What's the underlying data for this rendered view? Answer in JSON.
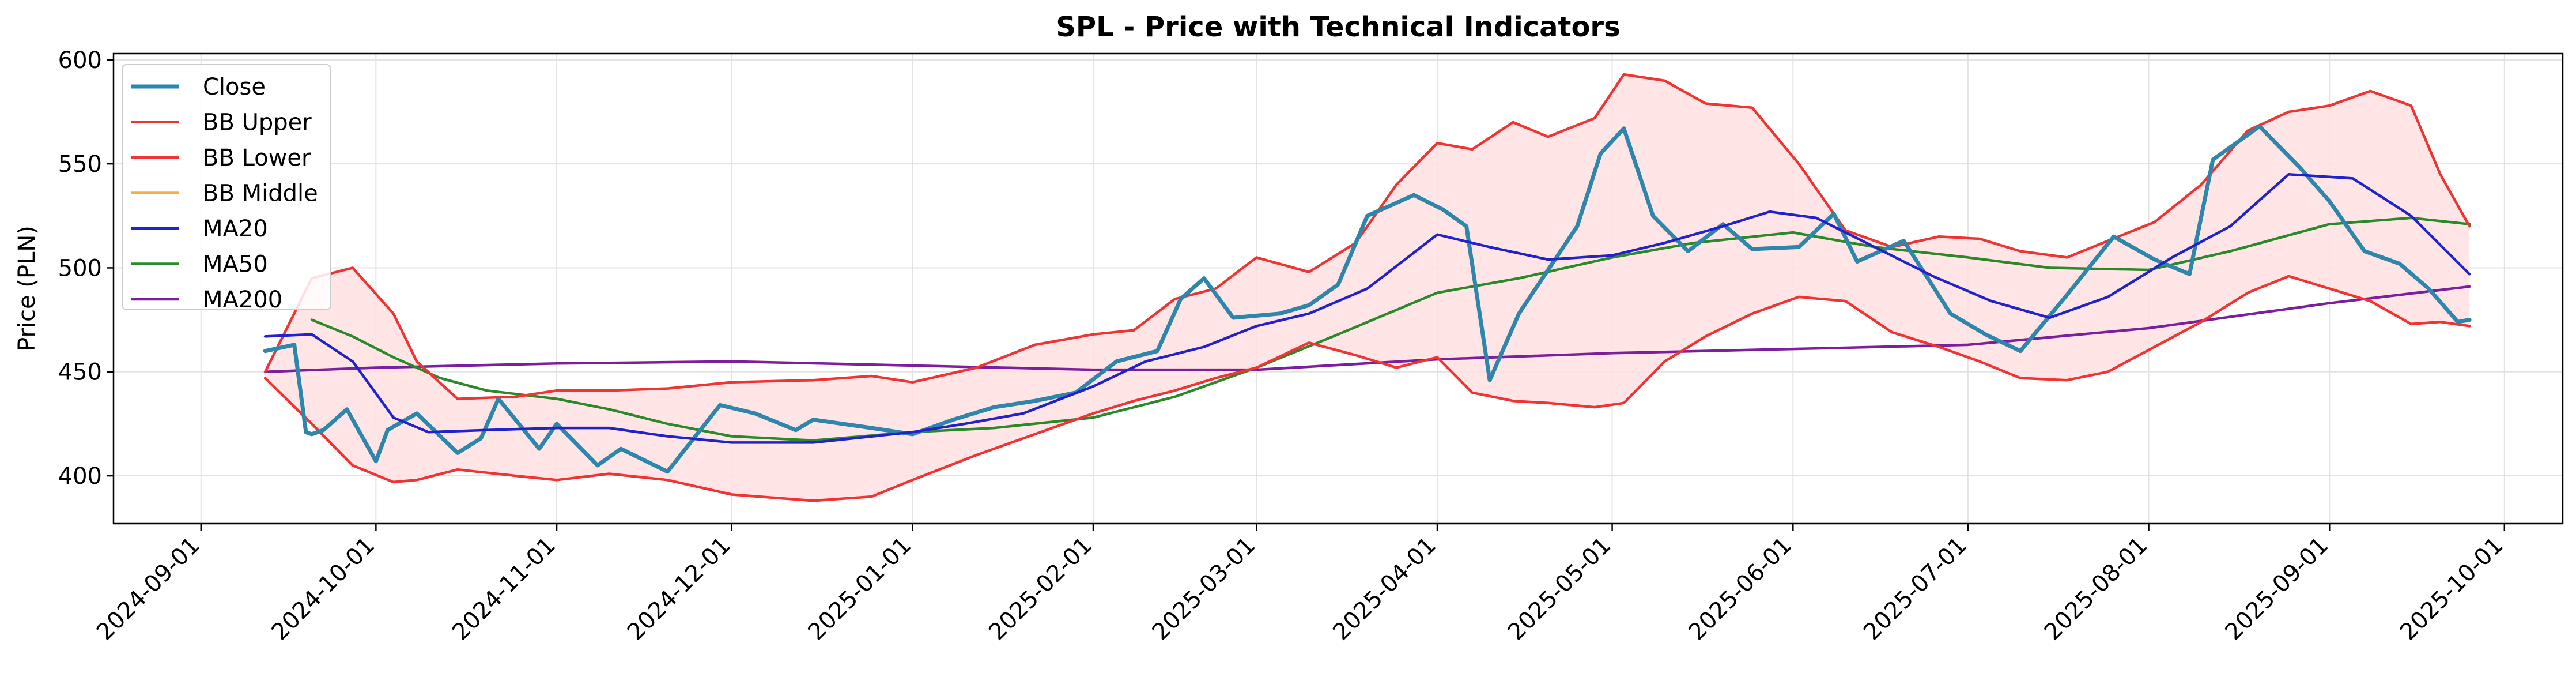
{
  "chart_data": {
    "type": "line",
    "title": "SPL - Price with Technical Indicators",
    "xlabel": "",
    "ylabel": "Price (PLN)",
    "ylim": [
      377,
      603
    ],
    "xlim": [
      "2024-08-17",
      "2025-10-11"
    ],
    "yticks": [
      400,
      450,
      500,
      550,
      600
    ],
    "xticks": [
      "2024-09-01",
      "2024-10-01",
      "2024-11-01",
      "2024-12-01",
      "2025-01-01",
      "2025-02-01",
      "2025-03-01",
      "2025-04-01",
      "2025-05-01",
      "2025-06-01",
      "2025-07-01",
      "2025-08-01",
      "2025-09-01",
      "2025-10-01"
    ],
    "grid": true,
    "legend_position": "upper-left",
    "band_fill_color": "#ffe0e0",
    "series": [
      {
        "name": "Close",
        "color": "#2e86ab",
        "x": [
          "2024-09-12",
          "2024-09-17",
          "2024-09-19",
          "2024-09-20",
          "2024-09-22",
          "2024-09-26",
          "2024-10-01",
          "2024-10-03",
          "2024-10-08",
          "2024-10-15",
          "2024-10-19",
          "2024-10-22",
          "2024-10-29",
          "2024-11-01",
          "2024-11-08",
          "2024-11-12",
          "2024-11-20",
          "2024-11-29",
          "2024-12-05",
          "2024-12-12",
          "2024-12-15",
          "2024-12-25",
          "2025-01-01",
          "2025-01-08",
          "2025-01-15",
          "2025-01-22",
          "2025-01-29",
          "2025-02-05",
          "2025-02-12",
          "2025-02-16",
          "2025-02-20",
          "2025-02-25",
          "2025-03-05",
          "2025-03-10",
          "2025-03-15",
          "2025-03-20",
          "2025-03-28",
          "2025-04-02",
          "2025-04-06",
          "2025-04-10",
          "2025-04-15",
          "2025-04-25",
          "2025-04-29",
          "2025-05-03",
          "2025-05-08",
          "2025-05-14",
          "2025-05-20",
          "2025-05-25",
          "2025-06-02",
          "2025-06-08",
          "2025-06-12",
          "2025-06-20",
          "2025-06-28",
          "2025-07-04",
          "2025-07-10",
          "2025-07-18",
          "2025-07-26",
          "2025-08-02",
          "2025-08-08",
          "2025-08-12",
          "2025-08-20",
          "2025-08-27",
          "2025-09-01",
          "2025-09-07",
          "2025-09-13",
          "2025-09-18",
          "2025-09-23",
          "2025-09-25"
        ],
        "y": [
          460,
          463,
          421,
          420,
          422,
          432,
          407,
          422,
          430,
          411,
          418,
          437,
          413,
          425,
          405,
          413,
          402,
          434,
          430,
          422,
          427,
          423,
          420,
          427,
          433,
          436,
          440,
          455,
          460,
          485,
          495,
          476,
          478,
          482,
          492,
          525,
          535,
          528,
          520,
          446,
          478,
          520,
          555,
          567,
          525,
          508,
          521,
          509,
          510,
          526,
          503,
          513,
          478,
          468,
          460,
          487,
          515,
          504,
          497,
          552,
          568,
          548,
          532,
          508,
          502,
          490,
          474,
          475
        ]
      },
      {
        "name": "BB Upper",
        "color": "#f03333",
        "x": [
          "2024-09-12",
          "2024-09-20",
          "2024-09-27",
          "2024-10-04",
          "2024-10-08",
          "2024-10-15",
          "2024-10-25",
          "2024-11-01",
          "2024-11-10",
          "2024-11-20",
          "2024-12-01",
          "2024-12-15",
          "2024-12-25",
          "2025-01-01",
          "2025-01-12",
          "2025-01-22",
          "2025-02-01",
          "2025-02-08",
          "2025-02-15",
          "2025-02-22",
          "2025-03-01",
          "2025-03-10",
          "2025-03-18",
          "2025-03-25",
          "2025-04-01",
          "2025-04-07",
          "2025-04-14",
          "2025-04-20",
          "2025-04-28",
          "2025-05-03",
          "2025-05-10",
          "2025-05-17",
          "2025-05-25",
          "2025-06-02",
          "2025-06-10",
          "2025-06-18",
          "2025-06-26",
          "2025-07-03",
          "2025-07-10",
          "2025-07-18",
          "2025-07-25",
          "2025-08-02",
          "2025-08-10",
          "2025-08-18",
          "2025-08-25",
          "2025-09-01",
          "2025-09-08",
          "2025-09-15",
          "2025-09-20",
          "2025-09-25"
        ],
        "y": [
          450,
          495,
          500,
          478,
          455,
          437,
          438,
          441,
          441,
          442,
          445,
          446,
          448,
          445,
          452,
          463,
          468,
          470,
          485,
          490,
          505,
          498,
          512,
          540,
          560,
          557,
          570,
          563,
          572,
          593,
          590,
          579,
          577,
          550,
          518,
          510,
          515,
          514,
          508,
          505,
          513,
          522,
          540,
          566,
          575,
          578,
          585,
          578,
          545,
          520
        ]
      },
      {
        "name": "BB Lower",
        "color": "#f03333",
        "x": [
          "2024-09-12",
          "2024-09-20",
          "2024-09-27",
          "2024-10-04",
          "2024-10-08",
          "2024-10-15",
          "2024-10-25",
          "2024-11-01",
          "2024-11-10",
          "2024-11-20",
          "2024-12-01",
          "2024-12-15",
          "2024-12-25",
          "2025-01-01",
          "2025-01-12",
          "2025-01-22",
          "2025-02-01",
          "2025-02-08",
          "2025-02-15",
          "2025-02-22",
          "2025-03-01",
          "2025-03-10",
          "2025-03-18",
          "2025-03-25",
          "2025-04-01",
          "2025-04-07",
          "2025-04-14",
          "2025-04-20",
          "2025-04-28",
          "2025-05-03",
          "2025-05-10",
          "2025-05-17",
          "2025-05-25",
          "2025-06-02",
          "2025-06-10",
          "2025-06-18",
          "2025-06-26",
          "2025-07-03",
          "2025-07-10",
          "2025-07-18",
          "2025-07-25",
          "2025-08-02",
          "2025-08-10",
          "2025-08-18",
          "2025-08-25",
          "2025-09-01",
          "2025-09-08",
          "2025-09-15",
          "2025-09-20",
          "2025-09-25"
        ],
        "y": [
          447,
          425,
          405,
          397,
          398,
          403,
          400,
          398,
          401,
          398,
          391,
          388,
          390,
          398,
          410,
          420,
          430,
          436,
          441,
          447,
          452,
          464,
          458,
          452,
          457,
          440,
          436,
          435,
          433,
          435,
          455,
          467,
          478,
          486,
          484,
          469,
          462,
          455,
          447,
          446,
          450,
          462,
          474,
          488,
          496,
          490,
          484,
          473,
          474,
          472
        ]
      },
      {
        "name": "BB Middle",
        "color": "#f5b041",
        "x": [],
        "y": []
      },
      {
        "name": "MA20",
        "color": "#2222cc",
        "x": [
          "2024-09-12",
          "2024-09-20",
          "2024-09-27",
          "2024-10-04",
          "2024-10-10",
          "2024-10-20",
          "2024-11-01",
          "2024-11-10",
          "2024-11-20",
          "2024-12-01",
          "2024-12-15",
          "2025-01-01",
          "2025-01-10",
          "2025-01-20",
          "2025-02-01",
          "2025-02-10",
          "2025-02-20",
          "2025-03-01",
          "2025-03-10",
          "2025-03-20",
          "2025-04-01",
          "2025-04-10",
          "2025-04-20",
          "2025-05-01",
          "2025-05-10",
          "2025-05-20",
          "2025-05-28",
          "2025-06-05",
          "2025-06-15",
          "2025-06-25",
          "2025-07-05",
          "2025-07-15",
          "2025-07-25",
          "2025-08-05",
          "2025-08-15",
          "2025-08-25",
          "2025-09-05",
          "2025-09-15",
          "2025-09-25"
        ],
        "y": [
          467,
          468,
          455,
          428,
          421,
          422,
          423,
          423,
          419,
          416,
          416,
          421,
          425,
          430,
          443,
          455,
          462,
          472,
          478,
          490,
          516,
          510,
          504,
          506,
          512,
          520,
          527,
          524,
          510,
          496,
          484,
          476,
          486,
          505,
          520,
          545,
          543,
          525,
          497
        ]
      },
      {
        "name": "MA50",
        "color": "#2a8a2a",
        "x": [
          "2024-09-20",
          "2024-09-27",
          "2024-10-04",
          "2024-10-12",
          "2024-10-20",
          "2024-11-01",
          "2024-11-10",
          "2024-11-20",
          "2024-12-01",
          "2024-12-15",
          "2025-01-01",
          "2025-01-15",
          "2025-02-01",
          "2025-02-15",
          "2025-03-01",
          "2025-03-15",
          "2025-04-01",
          "2025-04-15",
          "2025-05-01",
          "2025-05-15",
          "2025-06-01",
          "2025-06-15",
          "2025-07-01",
          "2025-07-15",
          "2025-08-01",
          "2025-08-15",
          "2025-09-01",
          "2025-09-15",
          "2025-09-25"
        ],
        "y": [
          475,
          467,
          457,
          447,
          441,
          437,
          432,
          425,
          419,
          417,
          421,
          423,
          428,
          438,
          452,
          468,
          488,
          495,
          505,
          512,
          517,
          510,
          505,
          500,
          499,
          508,
          521,
          524,
          521
        ]
      },
      {
        "name": "MA200",
        "color": "#7b1f9e",
        "x": [
          "2024-09-12",
          "2024-10-01",
          "2024-11-01",
          "2024-12-01",
          "2025-01-01",
          "2025-02-01",
          "2025-03-01",
          "2025-04-01",
          "2025-05-01",
          "2025-06-01",
          "2025-07-01",
          "2025-08-01",
          "2025-09-01",
          "2025-09-25"
        ],
        "y": [
          450,
          452,
          454,
          455,
          453,
          451,
          451,
          456,
          459,
          461,
          463,
          471,
          483,
          491
        ]
      }
    ]
  }
}
